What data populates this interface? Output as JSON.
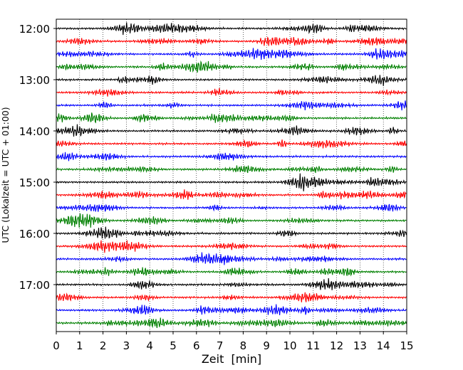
{
  "chart_data": {
    "type": "line",
    "title": "",
    "xlabel": "Zeit  [min]",
    "ylabel": "UTC (Lokalzeit = UTC + 01:00)",
    "xlim": [
      0,
      15
    ],
    "xticks": [
      "0",
      "1",
      "2",
      "3",
      "4",
      "5",
      "6",
      "7",
      "8",
      "9",
      "10",
      "11",
      "12",
      "13",
      "14",
      "15"
    ],
    "yticks": [
      "12:00",
      "13:00",
      "14:00",
      "15:00",
      "16:00",
      "17:00"
    ],
    "grid": "dotted vertical lines at each minute",
    "line_interval_minutes": 15,
    "line_start": "12:00",
    "line_count": 24,
    "color_cycle": [
      "#000000",
      "#ff0000",
      "#0000ff",
      "#008000"
    ],
    "trace_type": "seismogram / helicorder traces"
  }
}
